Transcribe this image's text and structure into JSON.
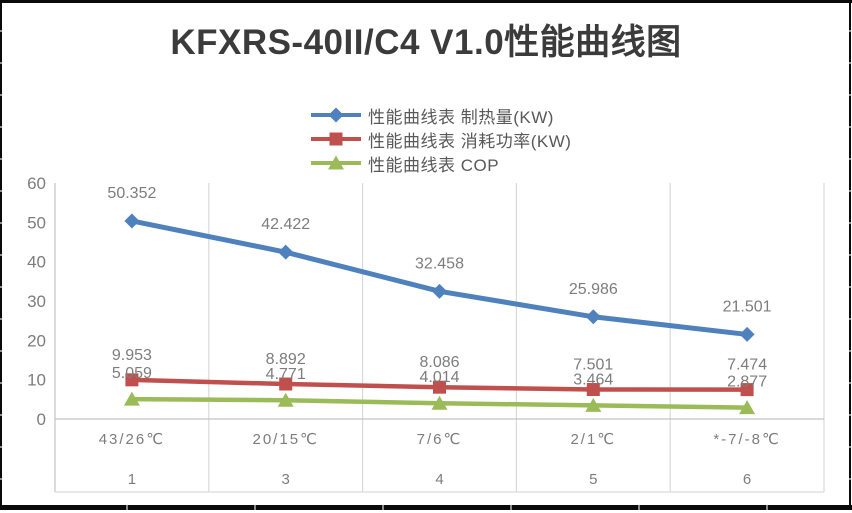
{
  "title": "KFXRS-40II/C4 V1.0性能曲线图",
  "chart_data": {
    "type": "line",
    "title": "KFXRS-40II/C4 V1.0性能曲线图",
    "categories": [
      "43/26℃",
      "20/15℃",
      "7/6℃",
      "2/1℃",
      "*-7/-8℃"
    ],
    "category_indices": [
      "1",
      "3",
      "4",
      "5",
      "6"
    ],
    "series": [
      {
        "name": "性能曲线表 制热量(KW)",
        "marker": "diamond",
        "color": "#4F81BD",
        "line_width": 5,
        "values": [
          50.352,
          42.422,
          32.458,
          25.986,
          21.501
        ],
        "labels": [
          "50.352",
          "42.422",
          "32.458",
          "25.986",
          "21.501"
        ]
      },
      {
        "name": "性能曲线表 消耗功率(KW)",
        "marker": "square",
        "color": "#C0504D",
        "line_width": 4.5,
        "values": [
          9.953,
          8.892,
          8.086,
          7.501,
          7.474
        ],
        "labels": [
          "9.953",
          "8.892",
          "8.086",
          "7.501",
          "7.474"
        ]
      },
      {
        "name": "性能曲线表 COP",
        "marker": "triangle",
        "color": "#9BBB59",
        "line_width": 4.5,
        "values": [
          5.059,
          4.771,
          4.014,
          3.464,
          2.877
        ],
        "labels": [
          "5.059",
          "4.771",
          "4.014",
          "3.464",
          "2.877"
        ]
      }
    ],
    "ylim": [
      0,
      60
    ],
    "yticks": [
      "0",
      "10",
      "20",
      "30",
      "40",
      "50",
      "60"
    ],
    "xlabel": "",
    "ylabel": "",
    "grid": "vertical-only",
    "legend_position": "top-center",
    "colors": {
      "gridline": "#D9D9D9",
      "axis_line": "#C3C3C3",
      "tick_label": "#7D7D7D",
      "data_label": "#7D7D7D",
      "legend_text": "#595959",
      "title_text": "#3B3B3B"
    }
  }
}
